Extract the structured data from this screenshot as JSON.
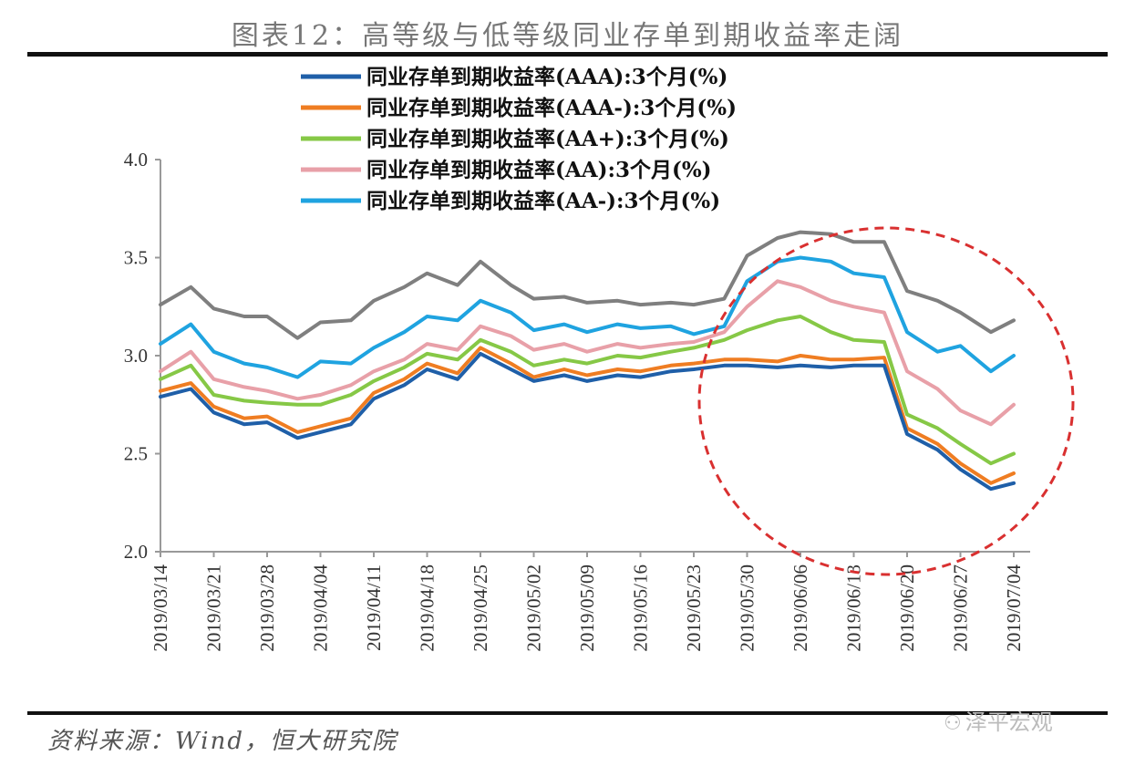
{
  "title": "图表12：高等级与低等级同业存单到期收益率走阔",
  "source": "资料来源：Wind，恒大研究院",
  "watermark": "泽平宏观",
  "chart_data": {
    "type": "line",
    "title": "图表12：高等级与低等级同业存单到期收益率走阔",
    "xlabel": "",
    "ylabel": "",
    "ylim": [
      2.0,
      4.0
    ],
    "yticks": [
      "2.0",
      "2.5",
      "3.0",
      "3.5",
      "4.0"
    ],
    "x_tick_labels": [
      "2019/03/14",
      "2019/03/21",
      "2019/03/28",
      "2019/04/04",
      "2019/04/11",
      "2019/04/18",
      "2019/04/25",
      "2019/05/02",
      "2019/05/09",
      "2019/05/16",
      "2019/05/23",
      "2019/05/30",
      "2019/06/06",
      "2019/06/13",
      "2019/06/20",
      "2019/06/27",
      "2019/07/04"
    ],
    "x": [
      "2019/03/14",
      "2019/03/18",
      "2019/03/21",
      "2019/03/25",
      "2019/03/28",
      "2019/04/01",
      "2019/04/04",
      "2019/04/08",
      "2019/04/11",
      "2019/04/15",
      "2019/04/18",
      "2019/04/22",
      "2019/04/25",
      "2019/04/29",
      "2019/05/02",
      "2019/05/06",
      "2019/05/09",
      "2019/05/13",
      "2019/05/16",
      "2019/05/20",
      "2019/05/23",
      "2019/05/27",
      "2019/05/30",
      "2019/06/03",
      "2019/06/06",
      "2019/06/10",
      "2019/06/13",
      "2019/06/17",
      "2019/06/20",
      "2019/06/24",
      "2019/06/27",
      "2019/07/01",
      "2019/07/04"
    ],
    "series": [
      {
        "name": "同业存单到期收益率(AAA):3个月(%)",
        "color": "#1f5fa8",
        "values": [
          2.79,
          2.83,
          2.71,
          2.65,
          2.66,
          2.58,
          2.61,
          2.65,
          2.78,
          2.85,
          2.93,
          2.88,
          3.01,
          2.93,
          2.87,
          2.9,
          2.87,
          2.9,
          2.89,
          2.92,
          2.93,
          2.95,
          2.95,
          2.94,
          2.95,
          2.94,
          2.95,
          2.95,
          2.6,
          2.52,
          2.42,
          2.32,
          2.35
        ]
      },
      {
        "name": "同业存单到期收益率(AAA-):3个月(%)",
        "color": "#ef7d22",
        "values": [
          2.82,
          2.86,
          2.74,
          2.68,
          2.69,
          2.61,
          2.64,
          2.68,
          2.81,
          2.88,
          2.96,
          2.91,
          3.04,
          2.96,
          2.89,
          2.93,
          2.9,
          2.93,
          2.92,
          2.95,
          2.96,
          2.98,
          2.98,
          2.97,
          3.0,
          2.98,
          2.98,
          2.99,
          2.63,
          2.55,
          2.45,
          2.35,
          2.4
        ]
      },
      {
        "name": "同业存单到期收益率(AA+):3个月(%)",
        "color": "#86c846",
        "values": [
          2.88,
          2.95,
          2.8,
          2.77,
          2.76,
          2.75,
          2.75,
          2.8,
          2.87,
          2.94,
          3.01,
          2.98,
          3.08,
          3.02,
          2.95,
          2.98,
          2.96,
          3.0,
          2.99,
          3.02,
          3.04,
          3.08,
          3.13,
          3.18,
          3.2,
          3.12,
          3.08,
          3.07,
          2.7,
          2.63,
          2.55,
          2.45,
          2.5
        ]
      },
      {
        "name": "同业存单到期收益率(AA):3个月(%)",
        "color": "#e8a0a8",
        "values": [
          2.92,
          3.02,
          2.88,
          2.84,
          2.82,
          2.78,
          2.8,
          2.85,
          2.92,
          2.98,
          3.06,
          3.03,
          3.15,
          3.1,
          3.03,
          3.06,
          3.02,
          3.06,
          3.04,
          3.06,
          3.07,
          3.12,
          3.25,
          3.38,
          3.35,
          3.28,
          3.25,
          3.22,
          2.92,
          2.83,
          2.72,
          2.65,
          2.75
        ]
      },
      {
        "name": "同业存单到期收益率(AA-):3个月(%)",
        "color": "#1fa3e0",
        "values": [
          3.06,
          3.16,
          3.02,
          2.96,
          2.94,
          2.89,
          2.97,
          2.96,
          3.04,
          3.12,
          3.2,
          3.18,
          3.28,
          3.22,
          3.13,
          3.16,
          3.12,
          3.16,
          3.14,
          3.15,
          3.11,
          3.15,
          3.38,
          3.48,
          3.5,
          3.48,
          3.42,
          3.4,
          3.12,
          3.02,
          3.05,
          2.92,
          3.0
        ]
      },
      {
        "name": "",
        "color": "#7f7f7f",
        "values": [
          3.26,
          3.35,
          3.24,
          3.2,
          3.2,
          3.09,
          3.17,
          3.18,
          3.28,
          3.35,
          3.42,
          3.36,
          3.48,
          3.36,
          3.29,
          3.3,
          3.27,
          3.28,
          3.26,
          3.27,
          3.26,
          3.29,
          3.51,
          3.6,
          3.63,
          3.62,
          3.58,
          3.58,
          3.33,
          3.28,
          3.22,
          3.12,
          3.18
        ]
      }
    ],
    "legend_position": "top",
    "annotation": "red dashed circle highlighting late May to early July 2019"
  }
}
